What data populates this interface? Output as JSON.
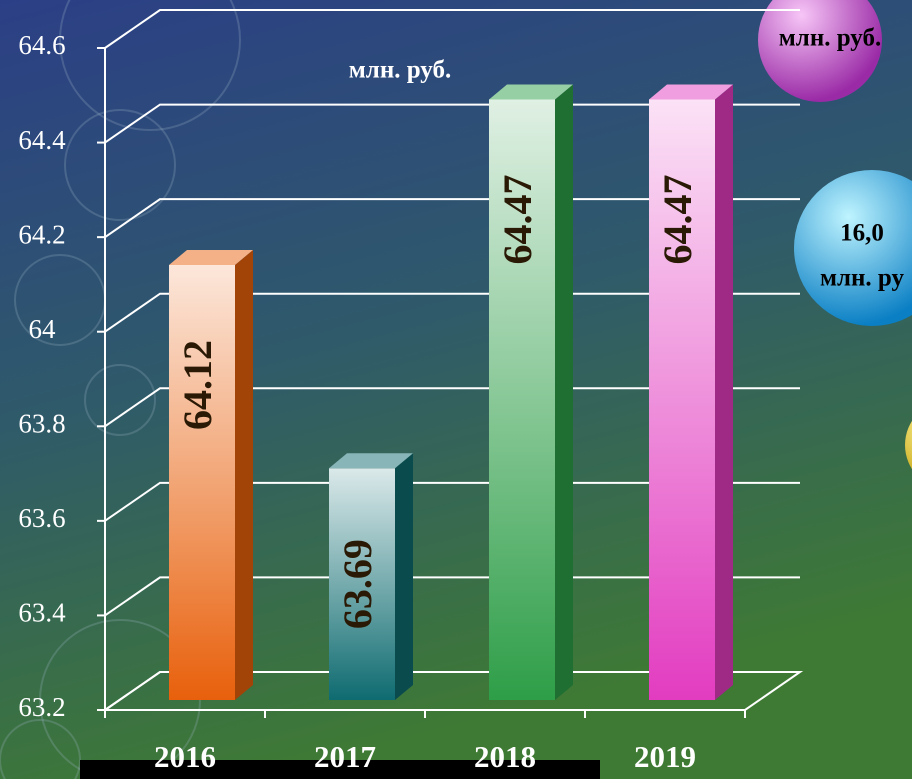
{
  "chart_data": {
    "type": "bar3d",
    "categories": [
      "2016",
      "2017",
      "2018",
      "2019"
    ],
    "values": [
      64.12,
      63.69,
      64.47,
      64.47
    ],
    "colors": [
      "#e8600c",
      "#0e6b70",
      "#2e9e48",
      "#e23cc0"
    ],
    "ylim": [
      63.2,
      64.6
    ],
    "yticks": [
      63.2,
      63.4,
      63.6,
      63.8,
      64,
      64.2,
      64.4,
      64.6
    ],
    "grid": true,
    "unit_label": "млн. руб."
  },
  "bubbles": [
    {
      "lines": [
        "млн. руб."
      ]
    },
    {
      "lines": [
        "16,0",
        "млн. ру"
      ]
    }
  ]
}
